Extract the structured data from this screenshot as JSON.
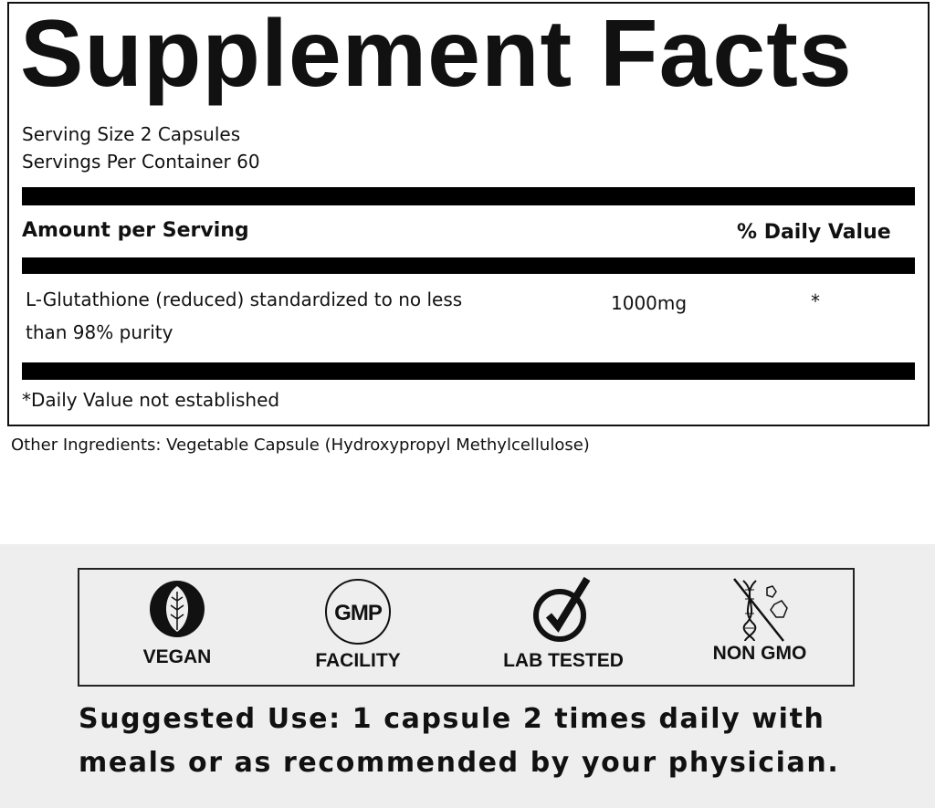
{
  "title": "Supplement Facts",
  "serving_size": "Serving Size 2 Capsules",
  "servings_per_container": "Servings Per Container 60",
  "header": {
    "amount": "Amount per Serving",
    "daily_value": "% Daily Value"
  },
  "ingredients": [
    {
      "name_line1": "L-Glutathione (reduced) standardized to no less",
      "name_line2": "than 98% purity",
      "amount": "1000mg",
      "dv": "*"
    }
  ],
  "footnote": "*Daily Value not established",
  "other_ingredients": "Other Ingredients: Vegetable Capsule (Hydroxypropyl Methylcellulose)",
  "badges": [
    {
      "label": "VEGAN",
      "icon": "leaf-icon"
    },
    {
      "label": "FACILITY",
      "icon": "gmp-icon",
      "icon_text": "GMP"
    },
    {
      "label": "LAB TESTED",
      "icon": "check-icon"
    },
    {
      "label": "NON GMO",
      "icon": "dna-crossed-icon"
    }
  ],
  "suggested_use": {
    "line1": "Suggested Use: 1 capsule 2 times daily with",
    "line2": "meals or as recommended by your physician."
  }
}
